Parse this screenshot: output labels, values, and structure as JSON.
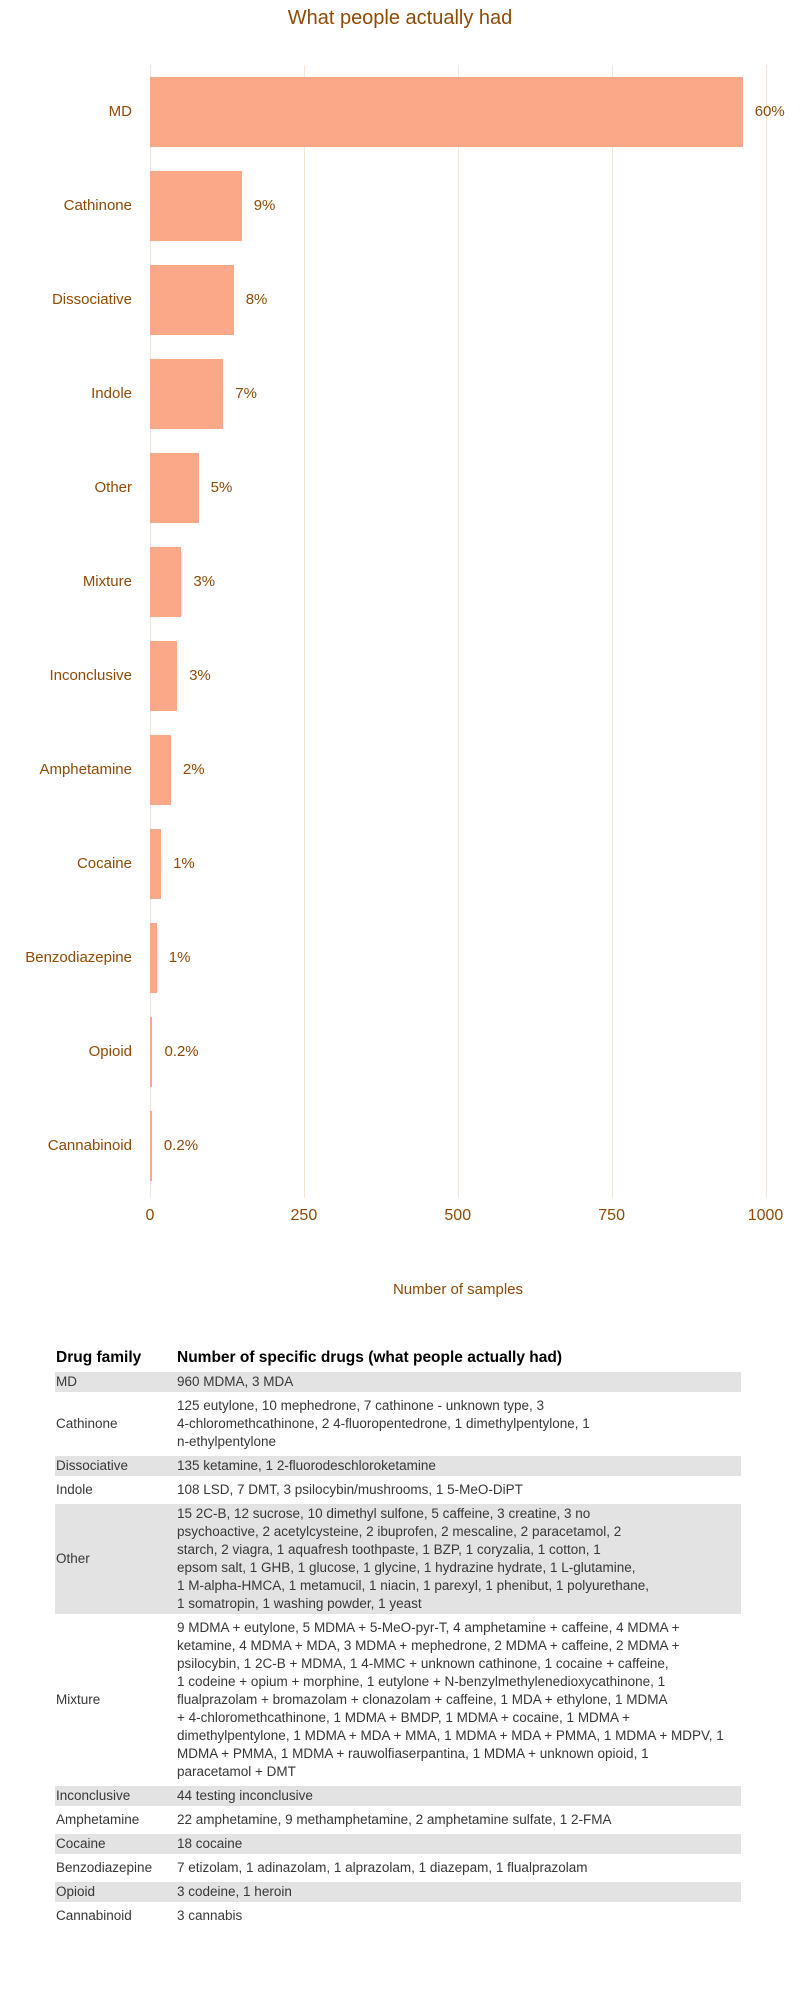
{
  "chart_data": {
    "type": "bar",
    "orientation": "horizontal",
    "title": "What people actually had",
    "xlabel": "Number of samples",
    "categories": [
      "MD",
      "Cathinone",
      "Dissociative",
      "Indole",
      "Other",
      "Mixture",
      "Inconclusive",
      "Amphetamine",
      "Cocaine",
      "Benzodiazepine",
      "Opioid",
      "Cannabinoid"
    ],
    "values": [
      963,
      149,
      136,
      119,
      79,
      51,
      44,
      34,
      18,
      11,
      4,
      3
    ],
    "bar_labels": [
      "60%",
      "9%",
      "8%",
      "7%",
      "5%",
      "3%",
      "3%",
      "2%",
      "1%",
      "1%",
      "0.2%",
      "0.2%"
    ],
    "x_ticks": [
      0,
      250,
      500,
      750,
      1000
    ],
    "xlim": [
      0,
      1040
    ],
    "grid": "vertical-only",
    "legend": "none",
    "bar_color": "#faa888",
    "text_color": "#8f4a06",
    "grid_color": "#f8e4d1"
  },
  "table": {
    "headers": [
      "Drug family",
      "Number of specific drugs (what people actually had)"
    ],
    "stripe_color": "#e3e3e3",
    "rows": [
      {
        "family": "MD",
        "drugs": "960 MDMA, 3 MDA"
      },
      {
        "family": "Cathinone",
        "drugs": "125 eutylone, 10 mephedrone, 7 cathinone - unknown type, 3\n4-chloromethcathinone, 2 4-fluoropentedrone, 1 dimethylpentylone, 1\nn-ethylpentylone"
      },
      {
        "family": "Dissociative",
        "drugs": "135 ketamine, 1 2-fluorodeschloroketamine"
      },
      {
        "family": "Indole",
        "drugs": "108 LSD, 7 DMT, 3 psilocybin/mushrooms, 1 5-MeO-DiPT"
      },
      {
        "family": "Other",
        "drugs": "15 2C-B, 12 sucrose, 10 dimethyl sulfone, 5 caffeine, 3 creatine, 3 no\npsychoactive, 2 acetylcysteine, 2 ibuprofen, 2 mescaline, 2 paracetamol, 2\nstarch, 2 viagra, 1 aquafresh toothpaste, 1 BZP, 1 coryzalia, 1 cotton, 1\nepsom salt, 1 GHB, 1 glucose, 1 glycine, 1 hydrazine hydrate, 1 L-glutamine,\n1 M-alpha-HMCA, 1 metamucil, 1 niacin, 1 parexyl, 1 phenibut, 1 polyurethane,\n1 somatropin, 1 washing powder, 1 yeast"
      },
      {
        "family": "Mixture",
        "drugs": "9 MDMA + eutylone, 5 MDMA + 5-MeO-pyr-T, 4 amphetamine + caffeine, 4 MDMA +\nketamine, 4 MDMA + MDA, 3 MDMA + mephedrone, 2 MDMA + caffeine, 2 MDMA +\npsilocybin, 1 2C-B + MDMA, 1 4-MMC + unknown cathinone, 1 cocaine + caffeine,\n1 codeine + opium + morphine, 1 eutylone + N-benzylmethylenedioxycathinone, 1\nflualprazolam + bromazolam + clonazolam + caffeine, 1 MDA + ethylone, 1 MDMA\n+ 4-chloromethcathinone, 1 MDMA + BMDP, 1 MDMA + cocaine, 1 MDMA +\ndimethylpentylone, 1 MDMA + MDA + MMA, 1 MDMA + MDA + PMMA, 1 MDMA + MDPV, 1\nMDMA + PMMA, 1 MDMA + rauwolfiaserpantina, 1 MDMA + unknown opioid, 1\nparacetamol + DMT"
      },
      {
        "family": "Inconclusive",
        "drugs": "44 testing inconclusive"
      },
      {
        "family": "Amphetamine",
        "drugs": "22 amphetamine, 9 methamphetamine, 2 amphetamine sulfate, 1 2-FMA"
      },
      {
        "family": "Cocaine",
        "drugs": "18 cocaine"
      },
      {
        "family": "Benzodiazepine",
        "drugs": "7 etizolam, 1 adinazolam, 1 alprazolam, 1 diazepam, 1 flualprazolam"
      },
      {
        "family": "Opioid",
        "drugs": "3 codeine, 1 heroin"
      },
      {
        "family": "Cannabinoid",
        "drugs": "3 cannabis"
      }
    ]
  }
}
